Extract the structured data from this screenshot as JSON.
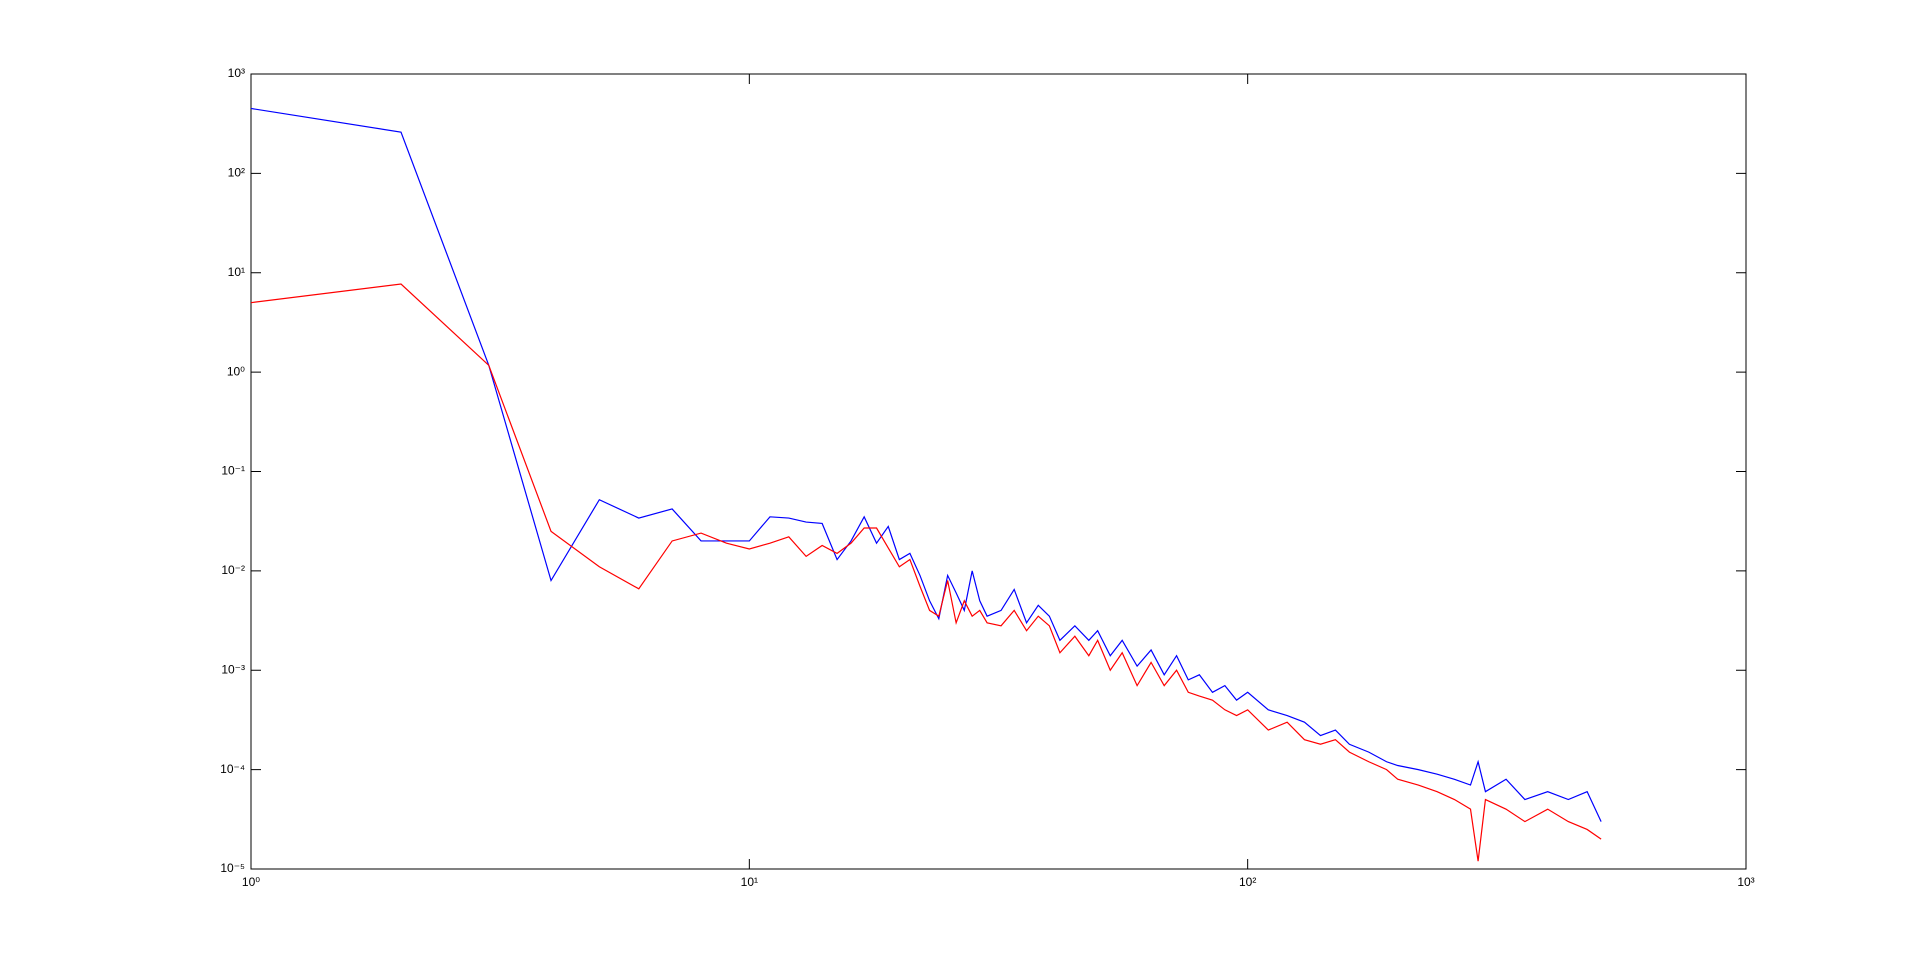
{
  "chart_data": {
    "type": "line",
    "x": [
      1,
      2,
      3,
      4,
      5,
      6,
      7,
      8,
      9,
      10,
      11,
      12,
      13,
      14,
      15,
      16,
      17,
      18,
      19,
      20,
      21,
      22,
      23,
      24,
      25,
      26,
      27,
      28,
      29,
      30,
      32,
      34,
      36,
      38,
      40,
      42,
      45,
      48,
      50,
      53,
      56,
      60,
      64,
      68,
      72,
      76,
      80,
      85,
      90,
      95,
      100,
      110,
      120,
      130,
      140,
      150,
      160,
      175,
      190,
      200,
      220,
      240,
      260,
      280,
      290,
      300,
      330,
      360,
      400,
      440,
      480,
      512
    ],
    "series": [
      {
        "color": "#0000ff",
        "values": [
          450,
          260,
          1.17,
          0.008,
          0.052,
          0.034,
          0.042,
          0.02,
          0.02,
          0.02,
          0.035,
          0.034,
          0.031,
          0.03,
          0.013,
          0.02,
          0.035,
          0.019,
          0.028,
          0.013,
          0.015,
          0.009,
          0.005,
          0.0033,
          0.009,
          0.006,
          0.004,
          0.01,
          0.005,
          0.0035,
          0.004,
          0.0065,
          0.003,
          0.0045,
          0.0035,
          0.002,
          0.0028,
          0.002,
          0.0025,
          0.0014,
          0.002,
          0.0011,
          0.0016,
          0.0009,
          0.0014,
          0.0008,
          0.0009,
          0.0006,
          0.0007,
          0.0005,
          0.0006,
          0.0004,
          0.00035,
          0.0003,
          0.00022,
          0.00025,
          0.00018,
          0.00015,
          0.00012,
          0.00011,
          0.0001,
          9e-05,
          8e-05,
          7e-05,
          0.00012,
          6e-05,
          8e-05,
          5e-05,
          6e-05,
          5e-05,
          6e-05,
          3e-05
        ]
      },
      {
        "color": "#ff0000",
        "values": [
          5,
          7.7,
          1.17,
          0.025,
          0.011,
          0.0066,
          0.02,
          0.024,
          0.019,
          0.0166,
          0.019,
          0.022,
          0.014,
          0.018,
          0.015,
          0.019,
          0.027,
          0.027,
          0.017,
          0.011,
          0.013,
          0.007,
          0.004,
          0.0035,
          0.008,
          0.003,
          0.005,
          0.0035,
          0.004,
          0.003,
          0.0028,
          0.004,
          0.0025,
          0.0035,
          0.0028,
          0.0015,
          0.0022,
          0.0014,
          0.002,
          0.001,
          0.0015,
          0.0007,
          0.0012,
          0.0007,
          0.001,
          0.0006,
          0.00055,
          0.0005,
          0.0004,
          0.00035,
          0.0004,
          0.00025,
          0.0003,
          0.0002,
          0.00018,
          0.0002,
          0.00015,
          0.00012,
          0.0001,
          8e-05,
          7e-05,
          6e-05,
          5e-05,
          4e-05,
          1.2e-05,
          5e-05,
          4e-05,
          3e-05,
          4e-05,
          3e-05,
          2.5e-05,
          2e-05
        ]
      }
    ],
    "xscale": "log",
    "yscale": "log",
    "xlim": [
      1,
      1000
    ],
    "ylim": [
      1e-05,
      1000
    ],
    "xticks": [
      {
        "value": 1,
        "label": "10⁰"
      },
      {
        "value": 10,
        "label": "10¹"
      },
      {
        "value": 100,
        "label": "10²"
      },
      {
        "value": 1000,
        "label": "10³"
      }
    ],
    "yticks": [
      {
        "value": 1e-05,
        "label": "10⁻⁵"
      },
      {
        "value": 0.0001,
        "label": "10⁻⁴"
      },
      {
        "value": 0.001,
        "label": "10⁻³"
      },
      {
        "value": 0.01,
        "label": "10⁻²"
      },
      {
        "value": 0.1,
        "label": "10⁻¹"
      },
      {
        "value": 1,
        "label": "10⁰"
      },
      {
        "value": 10,
        "label": "10¹"
      },
      {
        "value": 100,
        "label": "10²"
      },
      {
        "value": 1000,
        "label": "10³"
      }
    ]
  }
}
